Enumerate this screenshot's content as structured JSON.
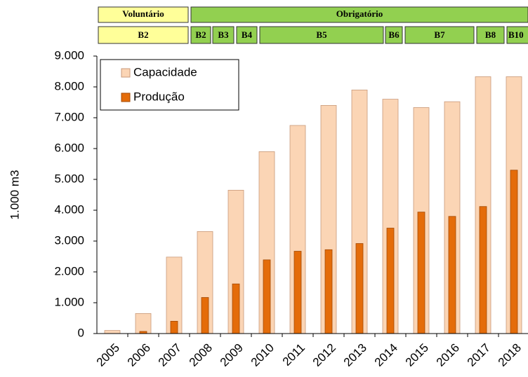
{
  "chart_data": {
    "type": "bar",
    "y_label": "1.000 m3",
    "categories": [
      "2005",
      "2006",
      "2007",
      "2008",
      "2009",
      "2010",
      "2011",
      "2012",
      "2013",
      "2014",
      "2015",
      "2016",
      "2017",
      "2018"
    ],
    "series": [
      {
        "name": "Capacidade",
        "color": "#fbd5b5",
        "values": [
          100,
          650,
          2480,
          3310,
          4650,
          5900,
          6750,
          7400,
          7900,
          7600,
          7330,
          7520,
          8330,
          8330
        ]
      },
      {
        "name": "Produção",
        "color": "#e46c0a",
        "values": [
          1,
          70,
          400,
          1170,
          1610,
          2390,
          2670,
          2720,
          2920,
          3420,
          3940,
          3800,
          4120,
          5300
        ]
      }
    ],
    "ylim": [
      0,
      9000
    ],
    "yticks": [
      0,
      {
        "value": 1000,
        "label": "1.000"
      },
      {
        "value": 2000,
        "label": "2.000"
      },
      {
        "value": 3000,
        "label": "3.000"
      },
      {
        "value": 4000,
        "label": "4.000"
      },
      {
        "value": 5000,
        "label": "5.000"
      },
      {
        "value": 6000,
        "label": "6.000"
      },
      {
        "value": 7000,
        "label": "7.000"
      },
      {
        "value": 8000,
        "label": "8.000"
      },
      {
        "value": 9000,
        "label": "9.000"
      }
    ],
    "legend": "upper left",
    "header": {
      "phases": [
        "Voluntário",
        "Obrigatório"
      ],
      "blends": [
        "B2",
        "B2",
        "B3",
        "B4",
        "B5",
        "B6",
        "B7",
        "B8",
        "B10"
      ]
    }
  }
}
